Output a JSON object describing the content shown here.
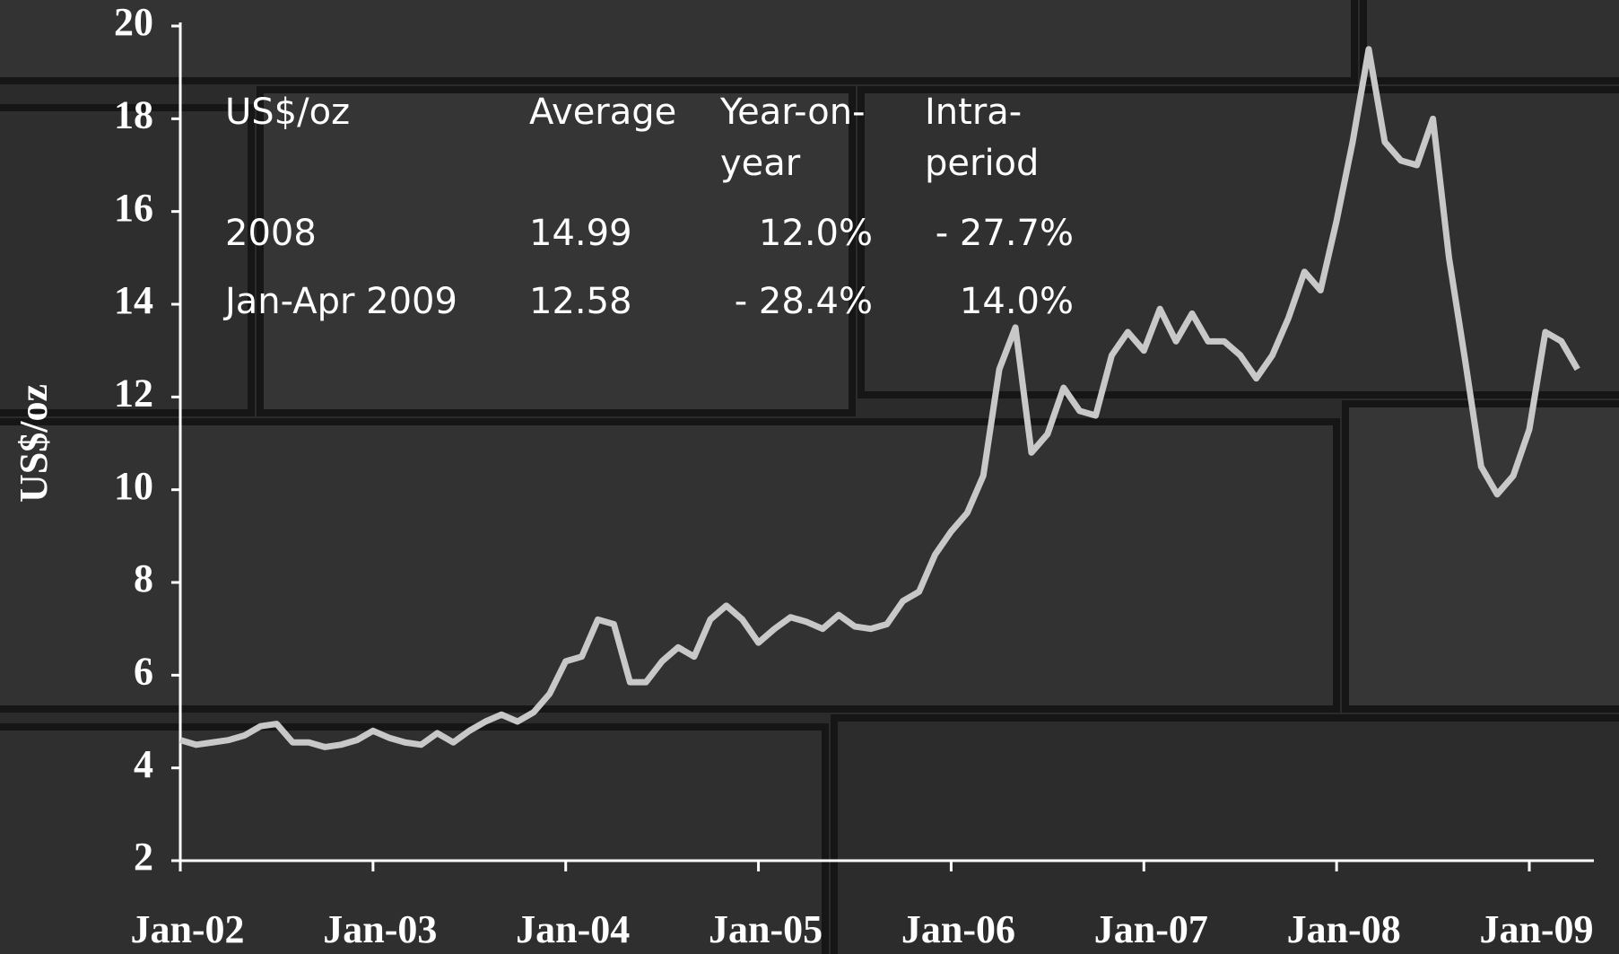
{
  "chart_data": {
    "type": "line",
    "ylabel": "US$/oz",
    "categories": [
      "Jan-02",
      null,
      null,
      null,
      null,
      null,
      null,
      null,
      null,
      null,
      null,
      null,
      "Jan-03",
      null,
      null,
      null,
      null,
      null,
      null,
      null,
      null,
      null,
      null,
      null,
      "Jan-04",
      null,
      null,
      null,
      null,
      null,
      null,
      null,
      null,
      null,
      null,
      null,
      "Jan-05",
      null,
      null,
      null,
      null,
      null,
      null,
      null,
      null,
      null,
      null,
      null,
      "Jan-06",
      null,
      null,
      null,
      null,
      null,
      null,
      null,
      null,
      null,
      null,
      null,
      "Jan-07",
      null,
      null,
      null,
      null,
      null,
      null,
      null,
      null,
      null,
      null,
      null,
      "Jan-08",
      null,
      null,
      null,
      null,
      null,
      null,
      null,
      null,
      null,
      null,
      null,
      "Jan-09",
      null,
      null,
      null
    ],
    "values": [
      4.6,
      4.5,
      4.55,
      4.6,
      4.7,
      4.9,
      4.95,
      4.55,
      4.55,
      4.45,
      4.5,
      4.6,
      4.8,
      4.65,
      4.55,
      4.5,
      4.75,
      4.55,
      4.8,
      5.0,
      5.15,
      5.0,
      5.2,
      5.6,
      6.3,
      6.4,
      7.2,
      7.1,
      5.85,
      5.85,
      6.3,
      6.6,
      6.4,
      7.2,
      7.5,
      7.2,
      6.7,
      7.0,
      7.25,
      7.15,
      7.0,
      7.3,
      7.05,
      7.0,
      7.1,
      7.6,
      7.8,
      8.6,
      9.1,
      9.5,
      10.3,
      12.6,
      13.5,
      10.8,
      11.2,
      12.2,
      11.7,
      11.6,
      12.9,
      13.4,
      13.0,
      13.9,
      13.2,
      13.8,
      13.2,
      13.2,
      12.9,
      12.4,
      12.9,
      13.7,
      14.7,
      14.3,
      15.8,
      17.5,
      19.5,
      17.5,
      17.1,
      17.0,
      18.0,
      15.0,
      12.8,
      10.5,
      9.9,
      10.3,
      11.3,
      13.4,
      13.2,
      12.6
    ],
    "color": "#c8c8c8",
    "ylim": [
      2,
      20
    ],
    "yticks": [
      2,
      4,
      6,
      8,
      10,
      12,
      14,
      16,
      18,
      20
    ],
    "grid": false
  },
  "table": {
    "header": [
      [
        "US$/oz"
      ],
      [
        "Average"
      ],
      [
        "Year-on-",
        "year"
      ],
      [
        "Intra-",
        "period"
      ]
    ],
    "rows": [
      [
        "2008",
        "14.99",
        "12.0%",
        "- 27.7%"
      ],
      [
        "Jan-Apr 2009",
        "12.58",
        "- 28.4%",
        "14.0%"
      ]
    ]
  }
}
